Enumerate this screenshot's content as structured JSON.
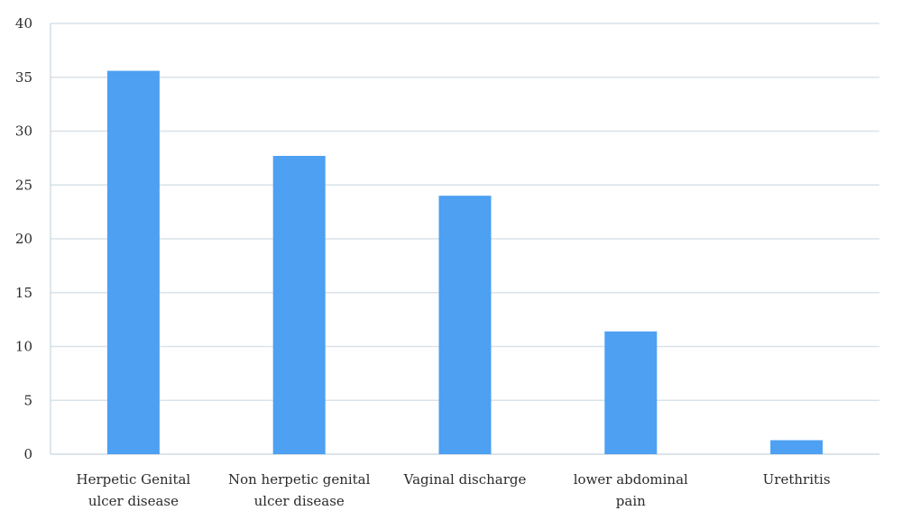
{
  "chart_data": {
    "type": "bar",
    "title": "",
    "xlabel": "",
    "ylabel": "",
    "categories": [
      [
        "Herpetic Genital",
        "ulcer disease"
      ],
      [
        "Non herpetic genital",
        "ulcer disease"
      ],
      [
        "Vaginal discharge"
      ],
      [
        "lower abdominal",
        "pain"
      ],
      [
        "Urethritis"
      ]
    ],
    "values": [
      35.6,
      27.7,
      24.0,
      11.4,
      1.3
    ],
    "ylim": [
      0,
      40
    ],
    "yticks": [
      "0",
      "5",
      "10",
      "15",
      "20",
      "25",
      "30",
      "35",
      "40"
    ],
    "ytick_values": [
      0,
      5,
      10,
      15,
      20,
      25,
      30,
      35,
      40
    ],
    "grid": true,
    "legend": "none",
    "bar_color": "#4da0f2",
    "grid_color": "#d9e3ea"
  }
}
